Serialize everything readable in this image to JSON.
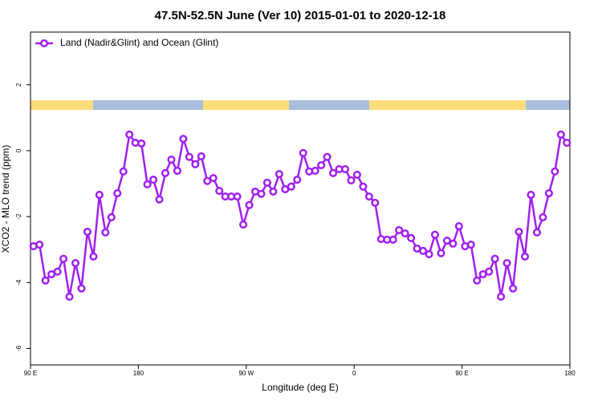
{
  "chart_data": {
    "type": "line",
    "title": "47.5N-52.5N June (Ver 10)   2015-01-01 to 2020-12-18",
    "x_label": "Longitude (deg E)",
    "y_label": "XCO2 - MLO trend (ppm)",
    "xlim": [
      90,
      540
    ],
    "ylim": [
      -6.5,
      3.6
    ],
    "xticks": [
      {
        "value": 90,
        "label": "90 E"
      },
      {
        "value": 180,
        "label": "180"
      },
      {
        "value": 270,
        "label": "90 W"
      },
      {
        "value": 360,
        "label": "0"
      },
      {
        "value": 450,
        "label": "90 E"
      },
      {
        "value": 540,
        "label": "180"
      }
    ],
    "yticks": [
      -6,
      -4,
      -2,
      0,
      2
    ],
    "legend": "top-left",
    "x": [
      92.5,
      97.5,
      102.5,
      107.5,
      112.5,
      117.5,
      122.5,
      127.5,
      132.5,
      137.5,
      142.5,
      147.5,
      152.5,
      157.5,
      162.5,
      167.5,
      172.5,
      177.5,
      182.5,
      187.5,
      192.5,
      197.5,
      202.5,
      207.5,
      212.5,
      217.5,
      222.5,
      227.5,
      232.5,
      237.5,
      242.5,
      247.5,
      252.5,
      257.5,
      262.5,
      267.5,
      272.5,
      277.5,
      282.5,
      287.5,
      292.5,
      297.5,
      302.5,
      307.5,
      312.5,
      317.5,
      322.5,
      327.5,
      332.5,
      337.5,
      342.5,
      347.5,
      352.5,
      357.5,
      362.5,
      367.5,
      372.5,
      377.5,
      382.5,
      387.5,
      392.5,
      397.5,
      402.5,
      407.5,
      412.5,
      417.5,
      422.5,
      427.5,
      432.5,
      437.5,
      442.5,
      447.5,
      452.5,
      457.5,
      462.5,
      467.5,
      472.5,
      477.5,
      482.5,
      487.5,
      492.5,
      497.5,
      502.5,
      507.5,
      512.5,
      517.5,
      522.5,
      527.5,
      532.5,
      537.5
    ],
    "series": [
      {
        "name": "Land (Nadir&Glint) and Ocean (Glint)",
        "color": "#a020f0",
        "values": [
          -2.9,
          -2.85,
          -3.94,
          -3.75,
          -3.67,
          -3.28,
          -4.43,
          -3.41,
          -4.18,
          -2.46,
          -3.21,
          -1.34,
          -2.48,
          -2.02,
          -1.29,
          -0.63,
          0.49,
          0.24,
          0.22,
          -1.02,
          -0.88,
          -1.48,
          -0.68,
          -0.27,
          -0.61,
          0.36,
          -0.19,
          -0.41,
          -0.17,
          -0.92,
          -0.83,
          -1.22,
          -1.39,
          -1.39,
          -1.39,
          -2.24,
          -1.65,
          -1.24,
          -1.31,
          -0.97,
          -1.24,
          -0.71,
          -1.17,
          -1.09,
          -0.88,
          -0.07,
          -0.63,
          -0.61,
          -0.44,
          -0.19,
          -0.68,
          -0.56,
          -0.56,
          -0.9,
          -0.73,
          -1.09,
          -1.39,
          -1.58,
          -2.68,
          -2.7,
          -2.7,
          -2.41,
          -2.51,
          -2.65,
          -2.97,
          -3.04,
          -3.14,
          -2.55,
          -3.11,
          -2.73,
          -2.82,
          -2.29,
          -2.9,
          -2.85,
          -3.94,
          -3.75,
          -3.67,
          -3.28,
          -4.43,
          -3.41,
          -4.18,
          -2.46,
          -3.21,
          -1.34,
          -2.48,
          -2.02,
          -1.29,
          -0.63,
          0.49,
          0.24
        ]
      }
    ]
  }
}
